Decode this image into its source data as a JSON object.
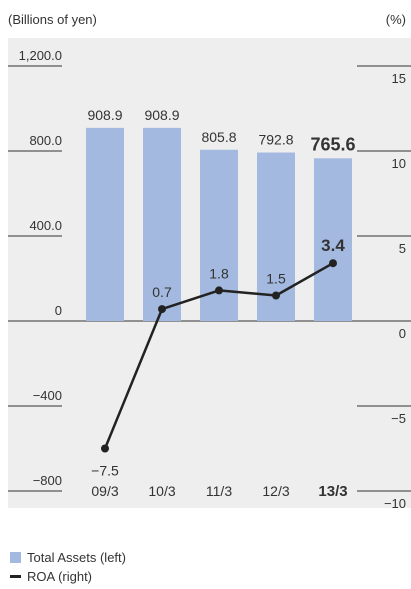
{
  "chart_data": {
    "type": "bar",
    "y_left_label": "(Billions of yen)",
    "y_right_label": "(%)",
    "categories": [
      "09/3",
      "10/3",
      "11/3",
      "12/3",
      "13/3"
    ],
    "highlight_category": "13/3",
    "series": [
      {
        "name": "Total Assets (left)",
        "kind": "bar",
        "axis": "left",
        "color": "#a4b9df",
        "values": [
          908.9,
          908.9,
          805.8,
          792.8,
          765.6
        ],
        "labels": [
          "908.9",
          "908.9",
          "805.8",
          "792.8",
          "765.6"
        ]
      },
      {
        "name": "ROA (right)",
        "kind": "line",
        "axis": "right",
        "color": "#222222",
        "values": [
          -7.5,
          0.7,
          1.8,
          1.5,
          3.4
        ],
        "labels": [
          "−7.5",
          "0.7",
          "1.8",
          "1.5",
          "3.4"
        ]
      }
    ],
    "y_left": {
      "range": [
        -800,
        1200
      ],
      "ticks": [
        1200,
        800,
        400,
        0,
        -400,
        -800
      ],
      "tick_labels": [
        "1,200.0",
        "800.0",
        "400.0",
        "0",
        "−400",
        "−800"
      ]
    },
    "y_right": {
      "range": [
        -10,
        15
      ],
      "ticks": [
        15,
        10,
        5,
        0,
        -5,
        -10
      ],
      "tick_labels": [
        "15",
        "10",
        "5",
        "0",
        "−5",
        "−10"
      ]
    },
    "background": "#eeeeee"
  },
  "legend": {
    "items": [
      {
        "label": "Total Assets (left)",
        "color": "#a4b9df",
        "kind": "bar"
      },
      {
        "label": "ROA (right)",
        "color": "#222222",
        "kind": "line"
      }
    ]
  }
}
